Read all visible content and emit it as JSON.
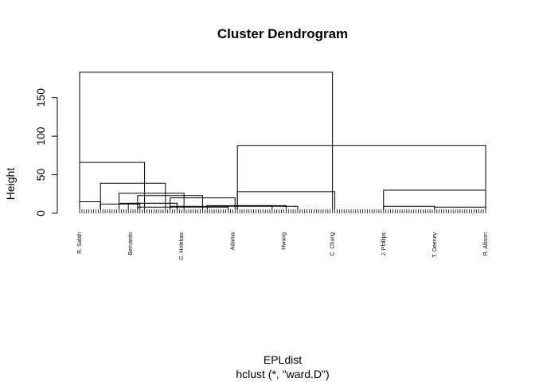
{
  "chart_data": {
    "type": "dendrogram",
    "title": "Cluster Dendrogram",
    "xlabel": "EPLdist",
    "sub": "hclust (*, \"ward.D\")",
    "ylabel": "Height",
    "ylim": [
      0,
      190
    ],
    "yticks": [
      0,
      50,
      100,
      150
    ],
    "leaf_count": 176,
    "leaf_height": 5,
    "grid": false,
    "leaf_labels": [
      "R. Salah",
      "Bernardo",
      "C. Holebas",
      "Adama",
      "Hwang",
      "C. Chung",
      "J. Phillips",
      "T. Deeney",
      "R. Allison"
    ],
    "merges": [
      {
        "h": 183,
        "left": 0,
        "right": 109
      },
      {
        "h": 66,
        "left": 0,
        "right": 28
      },
      {
        "h": 88,
        "left": 68,
        "right": 109
      },
      {
        "h": 15,
        "left": 0,
        "right": 9
      },
      {
        "h": 39,
        "left": 9,
        "right": 28
      },
      {
        "h": 12,
        "left": 9,
        "right": 17
      },
      {
        "h": 26,
        "left": 17,
        "right": 28
      },
      {
        "h": 13,
        "left": 17,
        "right": 25
      },
      {
        "h": 23,
        "left": 25,
        "right": 28
      },
      {
        "h": 8,
        "left": 25,
        "right": 39
      },
      {
        "h": 20,
        "left": 39,
        "right": 28
      },
      {
        "h": 9,
        "left": 39,
        "right": 55
      },
      {
        "h": 10,
        "left": 55,
        "right": 28
      },
      {
        "h": 28,
        "left": 68,
        "right": 42
      },
      {
        "h": 10,
        "left": 68,
        "right": 21
      },
      {
        "h": 13,
        "left": 21,
        "right": 21
      },
      {
        "h": 30,
        "left": 131,
        "right": 45
      },
      {
        "h": 9,
        "left": 131,
        "right": 22
      },
      {
        "h": 8,
        "left": 153,
        "right": 23
      }
    ]
  }
}
